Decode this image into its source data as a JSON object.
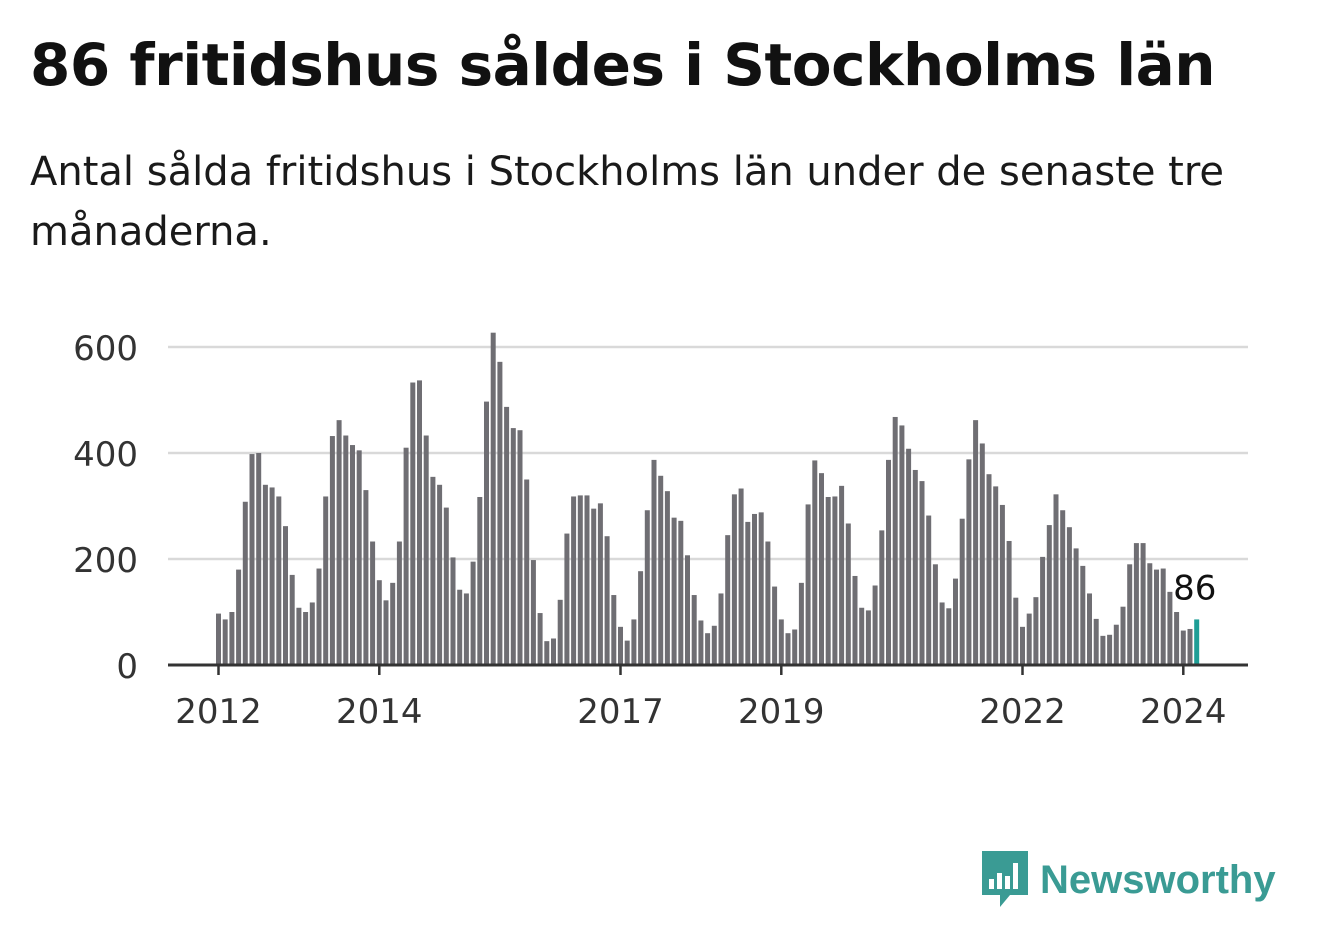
{
  "header": {
    "title": "86 fritidshus såldes i Stockholms län",
    "subtitle": "Antal sålda fritidshus i Stockholms län under de senaste tre månaderna."
  },
  "brand": {
    "name": "Newsworthy",
    "color": "#3a9b94"
  },
  "chart_data": {
    "type": "bar",
    "title": "",
    "xlabel": "",
    "ylabel": "",
    "ylim": [
      0,
      630
    ],
    "yticks": [
      0,
      200,
      400,
      600
    ],
    "xticks": [
      "2012",
      "2014",
      "2017",
      "2019",
      "2022",
      "2024"
    ],
    "xtick_month_index": [
      0,
      24,
      60,
      84,
      120,
      144
    ],
    "grid": true,
    "bar_color": "#6f6e73",
    "highlight_color": "#1e9e96",
    "highlight_index": 146,
    "highlight_label": "86",
    "values": [
      97,
      86,
      100,
      180,
      308,
      398,
      400,
      340,
      335,
      318,
      262,
      170,
      108,
      100,
      118,
      182,
      318,
      432,
      462,
      433,
      415,
      405,
      330,
      233,
      160,
      122,
      155,
      233,
      410,
      533,
      537,
      433,
      355,
      340,
      297,
      203,
      142,
      135,
      195,
      317,
      497,
      627,
      572,
      487,
      447,
      443,
      350,
      198,
      98,
      45,
      50,
      123,
      248,
      318,
      320,
      320,
      295,
      305,
      243,
      132,
      72,
      46,
      86,
      177,
      292,
      387,
      357,
      328,
      278,
      272,
      207,
      132,
      84,
      60,
      74,
      135,
      245,
      322,
      333,
      270,
      285,
      288,
      233,
      148,
      86,
      60,
      67,
      155,
      303,
      386,
      362,
      317,
      318,
      338,
      267,
      168,
      108,
      103,
      150,
      254,
      387,
      468,
      452,
      408,
      368,
      347,
      282,
      190,
      118,
      107,
      163,
      276,
      388,
      462,
      418,
      360,
      337,
      302,
      234,
      127,
      72,
      97,
      128,
      204,
      264,
      322,
      292,
      260,
      220,
      187,
      135,
      87,
      55,
      57,
      76,
      110,
      190,
      230,
      230,
      192,
      180,
      182,
      138,
      100,
      65,
      68,
      86
    ]
  }
}
